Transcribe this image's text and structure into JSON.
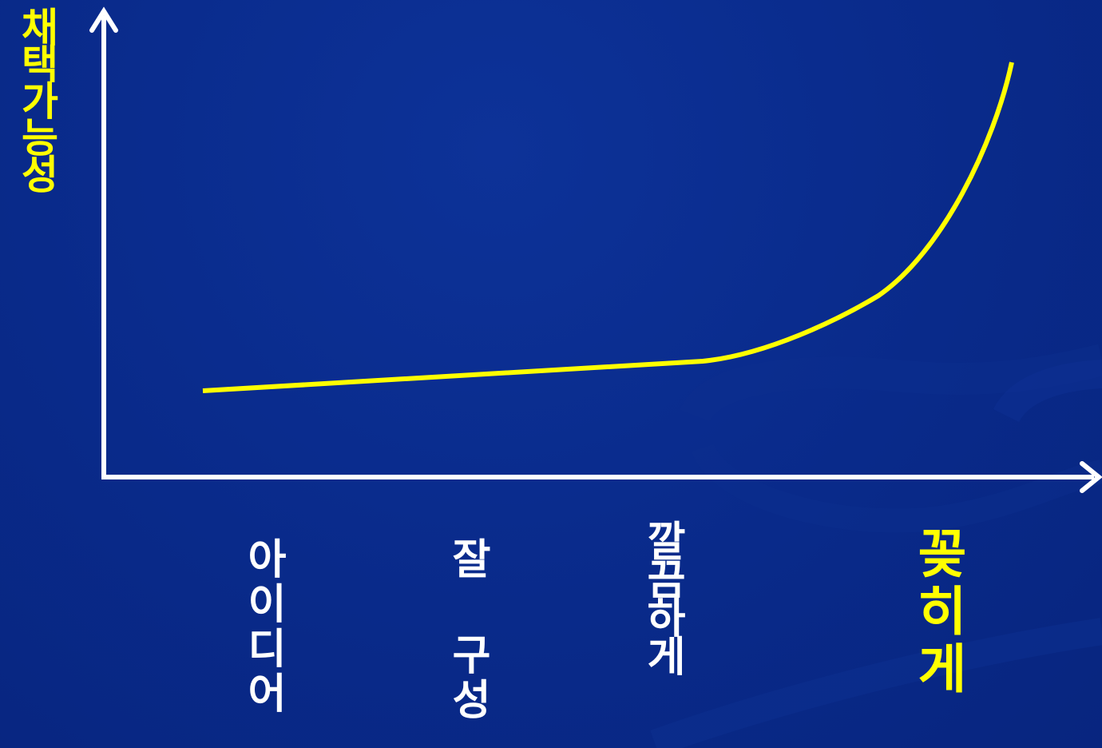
{
  "diagram": {
    "y_axis_label": "채택가능성",
    "x_stage_labels": [
      "아이디어",
      "잘 구성",
      "깔끔하게",
      "꽂히게"
    ],
    "colors": {
      "background": "#092a8a",
      "axis": "#ffffff",
      "curve": "#ffff00",
      "highlight_label": "#ffff00",
      "label": "#ffffff"
    }
  }
}
